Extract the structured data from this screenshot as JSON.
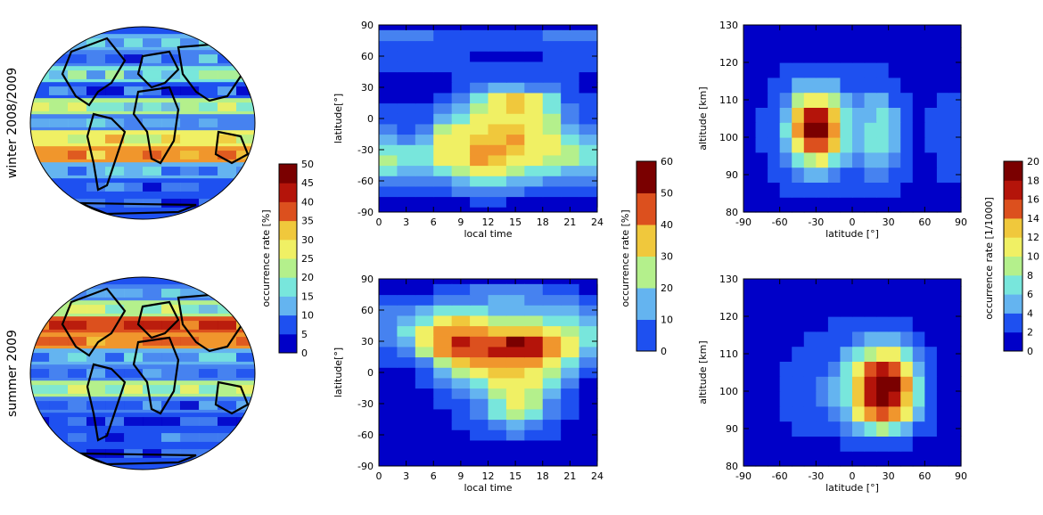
{
  "figure": {
    "row_labels": [
      "winter 2008/2009",
      "summer 2009"
    ]
  },
  "colorbars": [
    {
      "label": "occurrence rate [%]",
      "ticks": [
        "0",
        "5",
        "10",
        "15",
        "20",
        "25",
        "30",
        "35",
        "40",
        "45",
        "50"
      ],
      "min": 0,
      "max": 50
    },
    {
      "label": "occurrence rate [%]",
      "ticks": [
        "0",
        "10",
        "20",
        "30",
        "40",
        "50",
        "60"
      ],
      "min": 0,
      "max": 60
    },
    {
      "label": "occurrence rate [1/1000]",
      "ticks": [
        "0",
        "2",
        "4",
        "6",
        "8",
        "10",
        "12",
        "14",
        "16",
        "18",
        "20"
      ],
      "min": 0,
      "max": 20
    }
  ],
  "palette": [
    "#0000c8",
    "#1e50f0",
    "#4682f0",
    "#64b4f0",
    "#78e6dc",
    "#b4f08c",
    "#f0f064",
    "#f0c83c",
    "#f0962d",
    "#dc501e",
    "#b4140a",
    "#7a0000"
  ],
  "chart_data": [
    {
      "type": "heatmap",
      "id": "lt-winter",
      "xlabel": "local time",
      "ylabel": "latitude[°]",
      "xlim": [
        0,
        24
      ],
      "ylim": [
        -90,
        90
      ],
      "xticks": [
        "0",
        "3",
        "6",
        "9",
        "12",
        "15",
        "18",
        "21",
        "24"
      ],
      "yticks": [
        "-90",
        "-60",
        "-30",
        "0",
        "30",
        "60",
        "90"
      ],
      "value_range": [
        0,
        60
      ],
      "x": [
        1,
        3,
        5,
        7,
        9,
        11,
        13,
        15,
        17,
        19,
        21,
        23
      ],
      "y": [
        -80,
        -70,
        -60,
        -50,
        -40,
        -30,
        -20,
        -10,
        0,
        10,
        20,
        30,
        40,
        50,
        60,
        70,
        80
      ],
      "z": [
        [
          4,
          3,
          3,
          4,
          4,
          5,
          5,
          4,
          4,
          3,
          3,
          3
        ],
        [
          8,
          7,
          6,
          8,
          10,
          12,
          12,
          10,
          9,
          8,
          7,
          7
        ],
        [
          14,
          10,
          10,
          14,
          18,
          20,
          20,
          18,
          16,
          14,
          12,
          12
        ],
        [
          20,
          16,
          16,
          22,
          26,
          30,
          30,
          26,
          24,
          22,
          18,
          18
        ],
        [
          26,
          22,
          22,
          30,
          32,
          40,
          38,
          34,
          30,
          28,
          26,
          24
        ],
        [
          22,
          20,
          22,
          32,
          34,
          42,
          40,
          38,
          34,
          30,
          26,
          24
        ],
        [
          16,
          14,
          18,
          30,
          34,
          36,
          38,
          40,
          34,
          30,
          22,
          18
        ],
        [
          10,
          8,
          12,
          26,
          30,
          32,
          36,
          38,
          32,
          28,
          18,
          12
        ],
        [
          6,
          6,
          8,
          18,
          24,
          30,
          32,
          34,
          30,
          26,
          14,
          8
        ],
        [
          5,
          5,
          6,
          10,
          18,
          26,
          30,
          36,
          34,
          24,
          10,
          6
        ],
        [
          4,
          4,
          4,
          6,
          14,
          24,
          32,
          38,
          30,
          20,
          8,
          5
        ],
        [
          3,
          3,
          3,
          4,
          8,
          12,
          16,
          18,
          14,
          10,
          6,
          4
        ],
        [
          4,
          4,
          4,
          4,
          5,
          6,
          6,
          8,
          7,
          6,
          5,
          4
        ],
        [
          5,
          5,
          5,
          5,
          5,
          5,
          5,
          5,
          5,
          5,
          5,
          5
        ],
        [
          6,
          6,
          5,
          5,
          5,
          4,
          4,
          4,
          4,
          5,
          5,
          6
        ],
        [
          8,
          8,
          6,
          6,
          6,
          6,
          6,
          6,
          6,
          6,
          7,
          8
        ],
        [
          10,
          12,
          10,
          8,
          8,
          8,
          8,
          8,
          8,
          10,
          10,
          12
        ]
      ]
    },
    {
      "type": "heatmap",
      "id": "lt-summer",
      "xlabel": "local time",
      "ylabel": "latitude[°]",
      "xlim": [
        0,
        24
      ],
      "ylim": [
        -90,
        90
      ],
      "xticks": [
        "0",
        "3",
        "6",
        "9",
        "12",
        "15",
        "18",
        "21",
        "24"
      ],
      "yticks": [
        "-90",
        "-60",
        "-30",
        "0",
        "30",
        "60",
        "90"
      ],
      "value_range": [
        0,
        60
      ],
      "x": [
        1,
        3,
        5,
        7,
        9,
        11,
        13,
        15,
        17,
        19,
        21,
        23
      ],
      "y": [
        -80,
        -70,
        -60,
        -50,
        -40,
        -30,
        -20,
        -10,
        0,
        10,
        20,
        30,
        40,
        50,
        60,
        70,
        80
      ],
      "z": [
        [
          2,
          2,
          2,
          2,
          2,
          2,
          2,
          2,
          2,
          2,
          2,
          2
        ],
        [
          3,
          3,
          3,
          3,
          3,
          3,
          4,
          4,
          3,
          3,
          3,
          3
        ],
        [
          3,
          3,
          3,
          3,
          4,
          5,
          8,
          10,
          8,
          5,
          3,
          3
        ],
        [
          3,
          3,
          3,
          3,
          5,
          8,
          14,
          18,
          14,
          8,
          4,
          3
        ],
        [
          3,
          3,
          3,
          4,
          6,
          10,
          20,
          26,
          20,
          12,
          5,
          3
        ],
        [
          3,
          3,
          3,
          5,
          8,
          14,
          24,
          30,
          26,
          14,
          6,
          3
        ],
        [
          3,
          3,
          4,
          6,
          12,
          18,
          26,
          32,
          28,
          18,
          8,
          3
        ],
        [
          3,
          3,
          5,
          10,
          18,
          24,
          30,
          34,
          30,
          22,
          12,
          4
        ],
        [
          4,
          4,
          8,
          16,
          26,
          32,
          36,
          38,
          34,
          28,
          16,
          6
        ],
        [
          5,
          6,
          14,
          26,
          36,
          40,
          42,
          44,
          40,
          32,
          22,
          10
        ],
        [
          8,
          12,
          26,
          40,
          46,
          48,
          50,
          52,
          50,
          40,
          30,
          16
        ],
        [
          12,
          18,
          32,
          44,
          50,
          48,
          46,
          56,
          54,
          42,
          32,
          20
        ],
        [
          14,
          20,
          30,
          42,
          44,
          40,
          36,
          38,
          38,
          34,
          28,
          20
        ],
        [
          12,
          16,
          24,
          34,
          36,
          30,
          26,
          26,
          26,
          24,
          22,
          18
        ],
        [
          10,
          12,
          16,
          22,
          24,
          20,
          18,
          18,
          18,
          18,
          16,
          14
        ],
        [
          6,
          8,
          8,
          10,
          12,
          14,
          16,
          18,
          14,
          12,
          10,
          8
        ],
        [
          4,
          4,
          4,
          6,
          8,
          10,
          12,
          14,
          12,
          8,
          6,
          4
        ]
      ]
    },
    {
      "type": "heatmap",
      "id": "alt-winter",
      "xlabel": "latitude [°]",
      "ylabel": "altitude [km]",
      "xlim": [
        -90,
        90
      ],
      "ylim": [
        80,
        130
      ],
      "xticks": [
        "-90",
        "-60",
        "-30",
        "0",
        "30",
        "60",
        "90"
      ],
      "yticks": [
        "80",
        "90",
        "100",
        "110",
        "120",
        "130"
      ],
      "value_range": [
        0,
        20
      ],
      "x": [
        -85,
        -75,
        -65,
        -55,
        -45,
        -35,
        -25,
        -15,
        -5,
        5,
        15,
        25,
        35,
        45,
        55,
        65,
        75,
        85
      ],
      "y": [
        82,
        86,
        90,
        94,
        98,
        102,
        106,
        110,
        114,
        118,
        122,
        126,
        130
      ],
      "z": [
        [
          1,
          1,
          1,
          1,
          1,
          1,
          1,
          1,
          1,
          1,
          1,
          1,
          1,
          1,
          1,
          1,
          1,
          1
        ],
        [
          1,
          1,
          1,
          2,
          2,
          2,
          2,
          2,
          2,
          2,
          2,
          2,
          2,
          1,
          1,
          1,
          1,
          1
        ],
        [
          1,
          1,
          2,
          3,
          4,
          5,
          5,
          4,
          3,
          3,
          4,
          4,
          3,
          2,
          1,
          1,
          2,
          2
        ],
        [
          1,
          1,
          2,
          4,
          7,
          9,
          10,
          8,
          5,
          4,
          6,
          6,
          4,
          2,
          1,
          1,
          2,
          3
        ],
        [
          1,
          2,
          3,
          6,
          11,
          15,
          15,
          12,
          7,
          5,
          7,
          7,
          5,
          3,
          1,
          2,
          3,
          3
        ],
        [
          1,
          2,
          3,
          7,
          14,
          19,
          19,
          14,
          8,
          5,
          7,
          8,
          5,
          3,
          1,
          2,
          3,
          3
        ],
        [
          1,
          2,
          3,
          6,
          13,
          17,
          17,
          13,
          7,
          5,
          6,
          7,
          5,
          2,
          1,
          2,
          3,
          3
        ],
        [
          1,
          1,
          2,
          4,
          9,
          11,
          11,
          9,
          5,
          4,
          5,
          5,
          3,
          2,
          1,
          1,
          2,
          2
        ],
        [
          1,
          1,
          2,
          3,
          5,
          6,
          6,
          5,
          3,
          3,
          3,
          3,
          2,
          1,
          1,
          1,
          1,
          1
        ],
        [
          1,
          1,
          1,
          2,
          2,
          3,
          3,
          2,
          2,
          2,
          2,
          2,
          1,
          1,
          1,
          1,
          1,
          1
        ],
        [
          1,
          1,
          1,
          1,
          1,
          1,
          1,
          1,
          1,
          1,
          1,
          1,
          1,
          1,
          1,
          1,
          1,
          1
        ],
        [
          1,
          1,
          1,
          1,
          1,
          1,
          1,
          1,
          1,
          1,
          1,
          1,
          1,
          1,
          1,
          1,
          1,
          1
        ],
        [
          1,
          1,
          1,
          1,
          1,
          1,
          1,
          1,
          1,
          1,
          1,
          1,
          1,
          1,
          1,
          1,
          1,
          1
        ]
      ]
    },
    {
      "type": "heatmap",
      "id": "alt-summer",
      "xlabel": "latitude [°]",
      "ylabel": "altitude [km]",
      "xlim": [
        -90,
        90
      ],
      "ylim": [
        80,
        130
      ],
      "xticks": [
        "-90",
        "-60",
        "-30",
        "0",
        "30",
        "60",
        "90"
      ],
      "yticks": [
        "80",
        "90",
        "100",
        "110",
        "120",
        "130"
      ],
      "value_range": [
        0,
        20
      ],
      "x": [
        -85,
        -75,
        -65,
        -55,
        -45,
        -35,
        -25,
        -15,
        -5,
        5,
        15,
        25,
        35,
        45,
        55,
        65,
        75,
        85
      ],
      "y": [
        82,
        86,
        90,
        94,
        98,
        102,
        106,
        110,
        114,
        118,
        122,
        126,
        130
      ],
      "z": [
        [
          1,
          1,
          1,
          1,
          1,
          1,
          1,
          1,
          1,
          1,
          1,
          1,
          1,
          1,
          1,
          1,
          1,
          1
        ],
        [
          1,
          1,
          1,
          1,
          1,
          1,
          1,
          1,
          2,
          2,
          3,
          3,
          3,
          2,
          1,
          1,
          1,
          1
        ],
        [
          1,
          1,
          1,
          1,
          2,
          2,
          2,
          3,
          4,
          6,
          8,
          9,
          8,
          6,
          3,
          2,
          1,
          1
        ],
        [
          1,
          1,
          1,
          2,
          2,
          3,
          3,
          4,
          6,
          10,
          14,
          15,
          14,
          10,
          5,
          2,
          1,
          1
        ],
        [
          1,
          1,
          1,
          2,
          3,
          3,
          4,
          5,
          8,
          13,
          18,
          19,
          18,
          13,
          7,
          3,
          1,
          1
        ],
        [
          1,
          1,
          1,
          2,
          3,
          3,
          4,
          5,
          8,
          12,
          18,
          20,
          19,
          14,
          7,
          3,
          1,
          1
        ],
        [
          1,
          1,
          1,
          2,
          2,
          3,
          3,
          4,
          7,
          10,
          15,
          17,
          16,
          11,
          6,
          2,
          1,
          1
        ],
        [
          1,
          1,
          1,
          1,
          2,
          2,
          3,
          3,
          5,
          7,
          9,
          11,
          10,
          7,
          4,
          2,
          1,
          1
        ],
        [
          1,
          1,
          1,
          1,
          1,
          2,
          2,
          2,
          3,
          4,
          5,
          5,
          5,
          4,
          2,
          1,
          1,
          1
        ],
        [
          1,
          1,
          1,
          1,
          1,
          1,
          1,
          2,
          2,
          2,
          2,
          2,
          2,
          2,
          1,
          1,
          1,
          1
        ],
        [
          1,
          1,
          1,
          1,
          1,
          1,
          1,
          1,
          1,
          1,
          1,
          1,
          1,
          1,
          1,
          1,
          1,
          1
        ],
        [
          1,
          1,
          1,
          1,
          1,
          1,
          1,
          1,
          1,
          1,
          1,
          1,
          1,
          1,
          1,
          1,
          1,
          1
        ],
        [
          1,
          1,
          1,
          1,
          1,
          1,
          1,
          1,
          1,
          1,
          1,
          1,
          1,
          1,
          1,
          1,
          1,
          1
        ]
      ]
    },
    {
      "type": "heatmap",
      "id": "map-winter",
      "projection": "hammer-like globe map with coastlines",
      "value_range": [
        0,
        50
      ],
      "lat_bands": [
        75,
        60,
        45,
        30,
        15,
        0,
        -15,
        -30,
        -45,
        -60,
        -75
      ],
      "band_values": [
        14,
        10,
        18,
        8,
        22,
        12,
        28,
        34,
        14,
        8,
        6
      ]
    },
    {
      "type": "heatmap",
      "id": "map-summer",
      "projection": "hammer-like globe map with coastlines",
      "value_range": [
        0,
        50
      ],
      "lat_bands": [
        75,
        60,
        45,
        30,
        15,
        0,
        -15,
        -30,
        -45,
        -60,
        -75
      ],
      "band_values": [
        12,
        22,
        40,
        36,
        14,
        10,
        24,
        10,
        6,
        8,
        6
      ]
    }
  ]
}
